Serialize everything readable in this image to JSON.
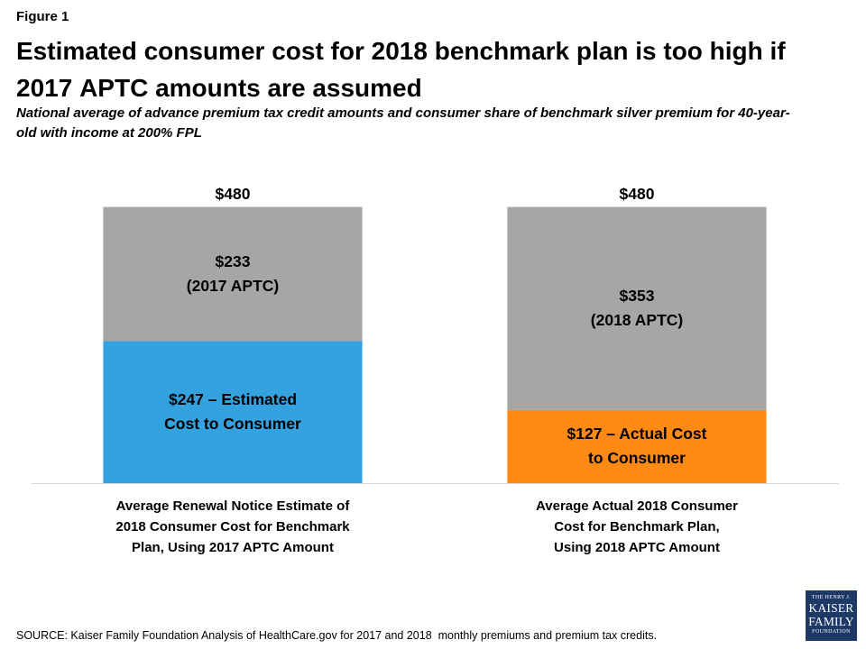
{
  "figure_label": "Figure 1",
  "source": "SOURCE: Kaiser Family Foundation Analysis of HealthCare.gov for 2017 and 2018  monthly premiums and premium tax credits.",
  "logo": {
    "line1": "THE HENRY J.",
    "line2": "KAISER",
    "line3": "FAMILY",
    "line4": "FOUNDATION",
    "background_color": "#1e3966",
    "text_color": "#ffffff"
  },
  "chart_data": {
    "type": "bar",
    "stacked": true,
    "title": "Estimated consumer cost for 2018 benchmark plan is too high if 2017 APTC amounts are assumed",
    "subtitle": "National average of advance premium tax credit amounts and consumer share of benchmark silver premium for 40-year-old with income at 200% FPL",
    "categories": [
      "Average Renewal Notice Estimate of\n2018 Consumer Cost for Benchmark\nPlan, Using 2017 APTC Amount",
      "Average Actual 2018 Consumer\nCost for Benchmark Plan,\nUsing 2018 APTC Amount"
    ],
    "series": [
      {
        "values": [
          247,
          127
        ],
        "colors": [
          "#33a2df",
          "#fd8a14"
        ],
        "data_labels": [
          "$247 – Estimated\nCost to Consumer",
          "$127 – Actual Cost\nto Consumer"
        ]
      },
      {
        "values": [
          233,
          353
        ],
        "colors": [
          "#a6a6a6",
          "#a6a6a6"
        ],
        "data_labels": [
          "$233\n(2017 APTC)",
          "$353\n(2018 APTC)"
        ]
      }
    ],
    "totals": [
      480,
      480
    ],
    "total_labels": [
      "$480",
      "$480"
    ],
    "ylim": [
      0,
      600
    ],
    "y_axis_visible": false,
    "grid": false,
    "axis_line_color": "#d9d9d9"
  }
}
